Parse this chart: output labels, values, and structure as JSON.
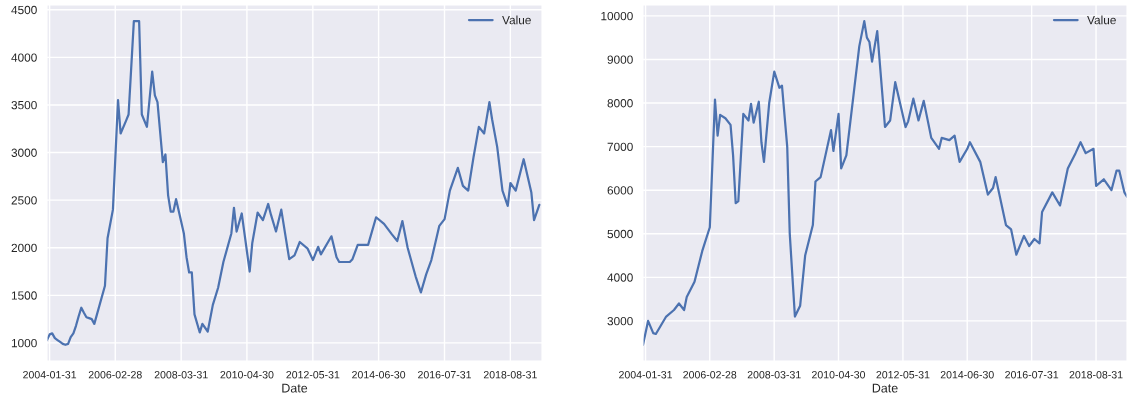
{
  "chart_data": [
    {
      "type": "line",
      "xlabel": "Date",
      "legend": "top right",
      "grid": true,
      "xlim": [
        "2004-01",
        "2019-09"
      ],
      "xticks": [
        "2004-01-31",
        "2006-02-28",
        "2008-03-31",
        "2010-04-30",
        "2012-05-31",
        "2014-06-30",
        "2016-07-31",
        "2018-08-31"
      ],
      "ylim": [
        810,
        4550
      ],
      "yticks": [
        1000,
        1500,
        2000,
        2500,
        3000,
        3500,
        4000,
        4500
      ],
      "series": [
        {
          "name": "Value",
          "color": "#4c72b0",
          "x": [
            "2004-01",
            "2004-02",
            "2004-03",
            "2004-04",
            "2004-05",
            "2004-06",
            "2004-07",
            "2004-08",
            "2004-09",
            "2004-10",
            "2004-11",
            "2004-12",
            "2005-01",
            "2005-02",
            "2005-03",
            "2005-04",
            "2005-05",
            "2005-06",
            "2005-07",
            "2005-11",
            "2005-12",
            "2006-02",
            "2006-04",
            "2006-05",
            "2006-07",
            "2006-08",
            "2006-10",
            "2006-12",
            "2007-01",
            "2007-03",
            "2007-05",
            "2007-06",
            "2007-07",
            "2007-09",
            "2007-10",
            "2007-11",
            "2007-12",
            "2008-01",
            "2008-02",
            "2008-04",
            "2008-05",
            "2008-06",
            "2008-07",
            "2008-08",
            "2008-09",
            "2008-11",
            "2008-12",
            "2009-02",
            "2009-04",
            "2009-06",
            "2009-08",
            "2009-11",
            "2009-12",
            "2010-01",
            "2010-03",
            "2010-06",
            "2010-07",
            "2010-09",
            "2010-11",
            "2011-01",
            "2011-02",
            "2011-04",
            "2011-06",
            "2011-09",
            "2011-11",
            "2012-01",
            "2012-04",
            "2012-06",
            "2012-08",
            "2012-09",
            "2013-01",
            "2013-03",
            "2013-04",
            "2013-08",
            "2013-09",
            "2013-11",
            "2014-03",
            "2014-06",
            "2014-09",
            "2014-12",
            "2015-02",
            "2015-04",
            "2015-06",
            "2015-08",
            "2015-09",
            "2015-11",
            "2016-01",
            "2016-03",
            "2016-06",
            "2016-08",
            "2016-10",
            "2017-01",
            "2017-03",
            "2017-05",
            "2017-07",
            "2017-09",
            "2017-11",
            "2018-01",
            "2018-02",
            "2018-04",
            "2018-06",
            "2018-08",
            "2018-09",
            "2018-11",
            "2019-02",
            "2019-05",
            "2019-06",
            "2019-08"
          ],
          "values": [
            1030,
            1090,
            1100,
            1050,
            1030,
            1010,
            990,
            980,
            990,
            1060,
            1100,
            1180,
            1280,
            1370,
            1320,
            1270,
            1260,
            1250,
            1200,
            1600,
            2100,
            2400,
            3550,
            3200,
            3330,
            3400,
            4380,
            4380,
            3400,
            3270,
            3850,
            3600,
            3530,
            2900,
            2980,
            2550,
            2380,
            2380,
            2510,
            2270,
            2150,
            1900,
            1740,
            1740,
            1300,
            1110,
            1200,
            1120,
            1400,
            1580,
            1850,
            2150,
            2420,
            2170,
            2360,
            1750,
            2050,
            2370,
            2290,
            2460,
            2350,
            2170,
            2400,
            1880,
            1920,
            2060,
            1990,
            1870,
            2010,
            1930,
            2120,
            1900,
            1850,
            1850,
            1880,
            2030,
            2030,
            2320,
            2250,
            2140,
            2070,
            2280,
            2000,
            1800,
            1700,
            1530,
            1720,
            1870,
            2230,
            2300,
            2600,
            2840,
            2650,
            2600,
            2950,
            3270,
            3200,
            3530,
            3350,
            3060,
            2600,
            2440,
            2680,
            2600,
            2930,
            2580,
            2290,
            2450
          ]
        }
      ]
    },
    {
      "type": "line",
      "xlabel": "Date",
      "legend": "top right",
      "grid": true,
      "xlim": [
        "2004-01",
        "2019-09"
      ],
      "xticks": [
        "2004-01-31",
        "2006-02-28",
        "2008-03-31",
        "2010-04-30",
        "2012-05-31",
        "2014-06-30",
        "2016-07-31",
        "2018-08-31"
      ],
      "ylim": [
        2080,
        10250
      ],
      "yticks": [
        3000,
        4000,
        5000,
        6000,
        7000,
        8000,
        9000,
        10000
      ],
      "series": [
        {
          "name": "Value",
          "color": "#4c72b0",
          "x": [
            "2004-01",
            "2004-03",
            "2004-05",
            "2004-06",
            "2004-10",
            "2005-01",
            "2005-03",
            "2005-05",
            "2005-06",
            "2005-09",
            "2005-12",
            "2006-03",
            "2006-05",
            "2006-06",
            "2006-07",
            "2006-09",
            "2006-11",
            "2006-12",
            "2007-01",
            "2007-02",
            "2007-04",
            "2007-06",
            "2007-07",
            "2007-08",
            "2007-10",
            "2007-11",
            "2007-12",
            "2008-02",
            "2008-04",
            "2008-06",
            "2008-07",
            "2008-09",
            "2008-10",
            "2008-12",
            "2009-02",
            "2009-04",
            "2009-07",
            "2009-08",
            "2009-10",
            "2010-02",
            "2010-03",
            "2010-05",
            "2010-06",
            "2010-08",
            "2010-11",
            "2011-01",
            "2011-03",
            "2011-04",
            "2011-05",
            "2011-06",
            "2011-08",
            "2011-11",
            "2012-01",
            "2012-03",
            "2012-07",
            "2012-08",
            "2012-10",
            "2012-12",
            "2013-02",
            "2013-05",
            "2013-08",
            "2013-09",
            "2013-12",
            "2014-02",
            "2014-04",
            "2014-07",
            "2014-08",
            "2014-12",
            "2015-03",
            "2015-05",
            "2015-06",
            "2015-10",
            "2015-12",
            "2016-02",
            "2016-05",
            "2016-07",
            "2016-09",
            "2016-11",
            "2016-12",
            "2017-04",
            "2017-07",
            "2017-10",
            "2018-01",
            "2018-03",
            "2018-05",
            "2018-08",
            "2018-09",
            "2018-12",
            "2019-03",
            "2019-05",
            "2019-06",
            "2019-08",
            "2019-09"
          ],
          "values": [
            2450,
            3000,
            2720,
            2700,
            3100,
            3250,
            3400,
            3250,
            3550,
            3900,
            4600,
            5150,
            8080,
            7250,
            7730,
            7650,
            7500,
            6800,
            5700,
            5750,
            7750,
            7600,
            7980,
            7550,
            8030,
            7100,
            6650,
            8000,
            8720,
            8350,
            8400,
            7000,
            5000,
            3100,
            3350,
            4500,
            5200,
            6200,
            6300,
            7380,
            6900,
            7750,
            6500,
            6800,
            8300,
            9300,
            9880,
            9500,
            9400,
            8950,
            9650,
            7450,
            7600,
            8480,
            7450,
            7580,
            8100,
            7600,
            8050,
            7200,
            6950,
            7200,
            7150,
            7250,
            6650,
            6950,
            7100,
            6650,
            5900,
            6050,
            6300,
            5200,
            5100,
            4520,
            4950,
            4720,
            4880,
            4780,
            5500,
            5950,
            5650,
            6500,
            6850,
            7100,
            6850,
            6950,
            6100,
            6250,
            6000,
            6450,
            6450,
            5950,
            5850
          ]
        }
      ]
    }
  ]
}
